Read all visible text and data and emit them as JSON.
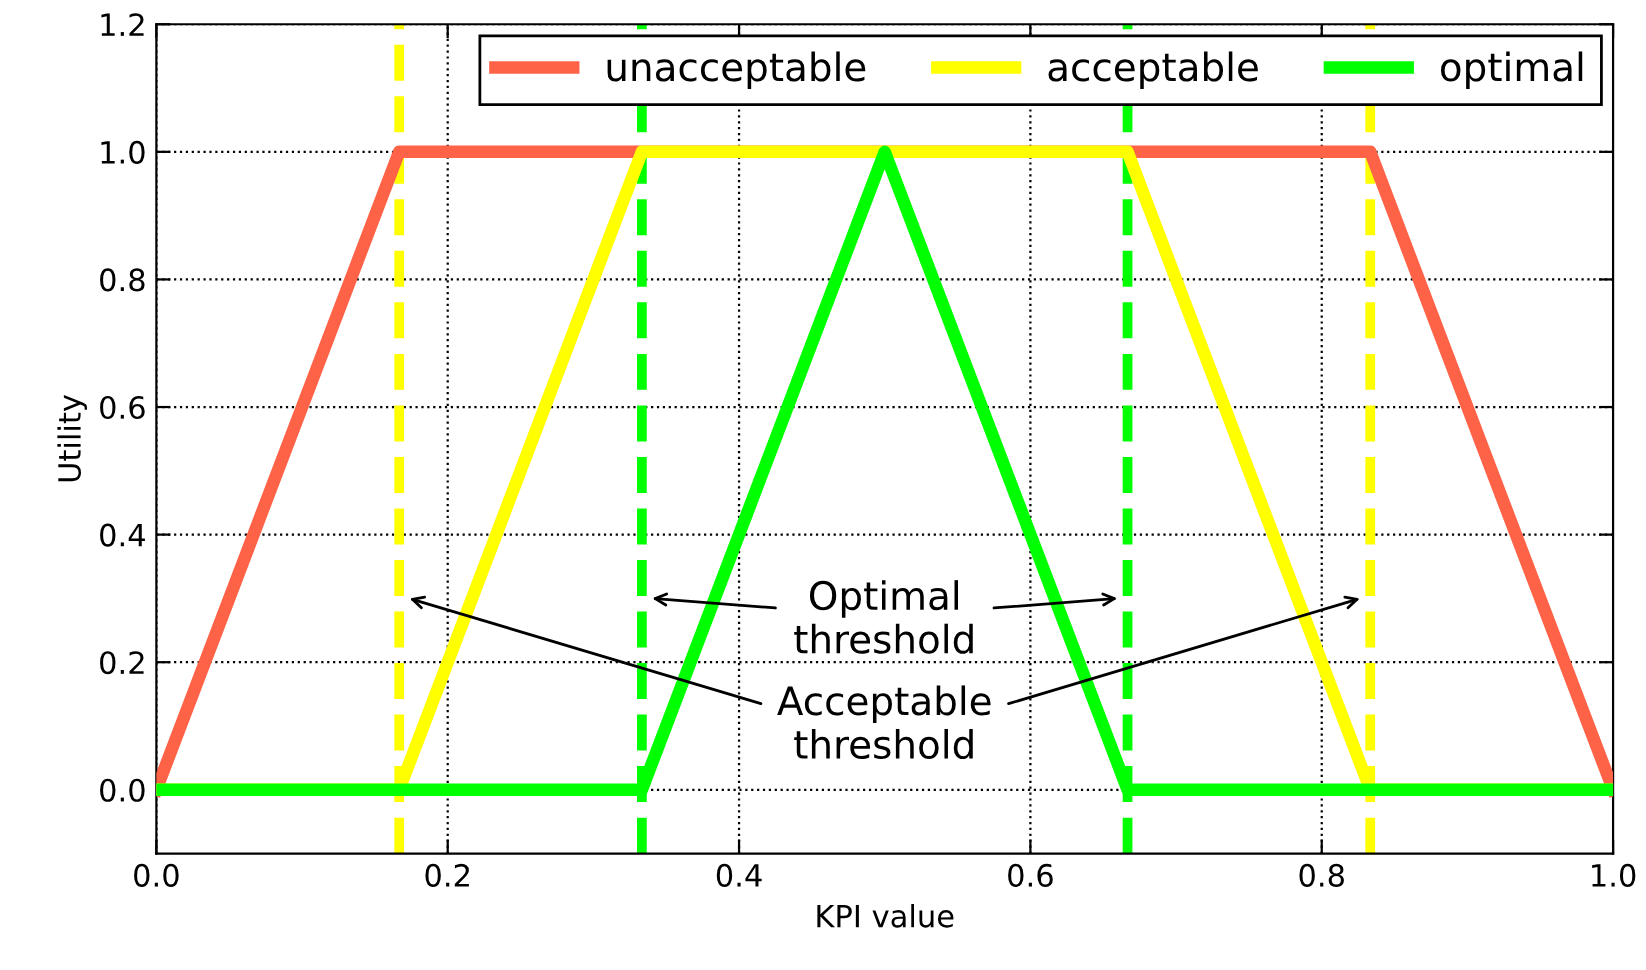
{
  "chart_data": {
    "type": "line",
    "xlabel": "KPI value",
    "ylabel": "Utility",
    "series": [
      {
        "name": "unacceptable",
        "color": "#ff6347",
        "x": [
          0.0,
          0.1667,
          0.8333,
          1.0
        ],
        "values": [
          0.0,
          1.0,
          1.0,
          0.0
        ]
      },
      {
        "name": "acceptable",
        "color": "#ffff00",
        "x": [
          0.0,
          0.1667,
          0.3333,
          0.6667,
          0.8333,
          1.0
        ],
        "values": [
          0.0,
          0.0,
          1.0,
          1.0,
          0.0,
          0.0
        ]
      },
      {
        "name": "optimal",
        "color": "#00ff00",
        "x": [
          0.0,
          0.3333,
          0.5,
          0.6667,
          1.0
        ],
        "values": [
          0.0,
          0.0,
          1.0,
          0.0,
          0.0
        ]
      }
    ],
    "ref_lines": [
      {
        "axis": "x",
        "value": 0.1667,
        "color": "#ffff00",
        "line_style": "dashed"
      },
      {
        "axis": "x",
        "value": 0.8333,
        "color": "#ffff00",
        "line_style": "dashed"
      },
      {
        "axis": "x",
        "value": 0.3333,
        "color": "#00ff00",
        "line_style": "dashed"
      },
      {
        "axis": "x",
        "value": 0.6667,
        "color": "#00ff00",
        "line_style": "dashed"
      }
    ],
    "annotations": [
      "Optimal\nthreshold",
      "Acceptable\nthreshold"
    ],
    "xlim": [
      0.0,
      1.0
    ],
    "xticks": [
      {
        "value": 0,
        "label": "0.0"
      },
      0.2,
      0.4,
      0.6,
      0.8,
      {
        "value": 1,
        "label": "1.0"
      }
    ],
    "ylim": [
      -0.1,
      1.2
    ],
    "yticks": [
      {
        "value": 0,
        "label": "0.0"
      },
      0.2,
      0.4,
      0.6,
      0.8,
      {
        "value": 1,
        "label": "1.0"
      },
      1.2
    ],
    "grid": true,
    "legend": "top right",
    "line_style": "solid",
    "marker": "none"
  }
}
